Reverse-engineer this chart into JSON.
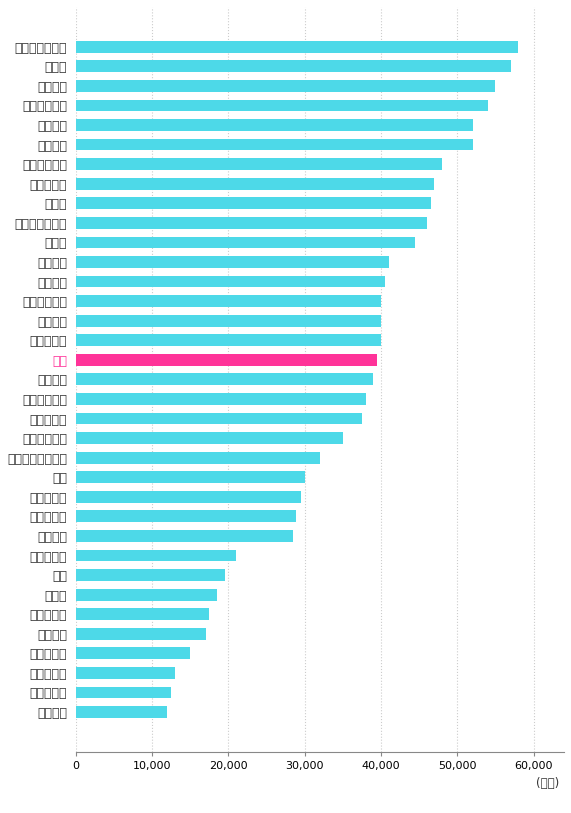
{
  "categories": [
    "ルクセンブルク",
    "スイス",
    "アメリカ",
    "アイスランド",
    "オランダ",
    "ベルギー",
    "オーストリア",
    "デンマーク",
    "ドイツ",
    "オーストラリア",
    "カナダ",
    "イギリス",
    "イタリア",
    "フィンランド",
    "フランス",
    "ノルウェー",
    "日本",
    "スペイン",
    "アイルランド",
    "イスラエル",
    "スウェーデン",
    "ニュージーランド",
    "韓国",
    "スロベニア",
    "ボルトガル",
    "ギリシャ",
    "ポーランド",
    "チリ",
    "チェコ",
    "ハンガリー",
    "メキシコ",
    "スロバキア",
    "エストニア",
    "リトアニア",
    "ラトビア"
  ],
  "values": [
    58000,
    57000,
    55000,
    54000,
    52000,
    52000,
    48000,
    47000,
    46500,
    46000,
    44500,
    41000,
    40500,
    40000,
    40000,
    40000,
    39500,
    39000,
    38000,
    37500,
    35000,
    32000,
    30000,
    29500,
    28800,
    28500,
    21000,
    19500,
    18500,
    17500,
    17000,
    15000,
    13000,
    12500,
    12000
  ],
  "highlight_index": 16,
  "bar_color": "#4DD9E8",
  "highlight_color": "#FF3399",
  "background_color": "#FFFFFF",
  "highlight_label_color": "#FF3399",
  "default_label_color": "#333333",
  "xlabel_suffix": "(ドル)",
  "xlim": [
    0,
    64000
  ],
  "xticks": [
    0,
    10000,
    20000,
    30000,
    40000,
    50000,
    60000
  ],
  "xtick_labels": [
    "0",
    "10,000",
    "20,000",
    "30,000",
    "40,000",
    "50,000",
    "60,000"
  ],
  "grid_color": "#CCCCCC",
  "bar_height": 0.6
}
